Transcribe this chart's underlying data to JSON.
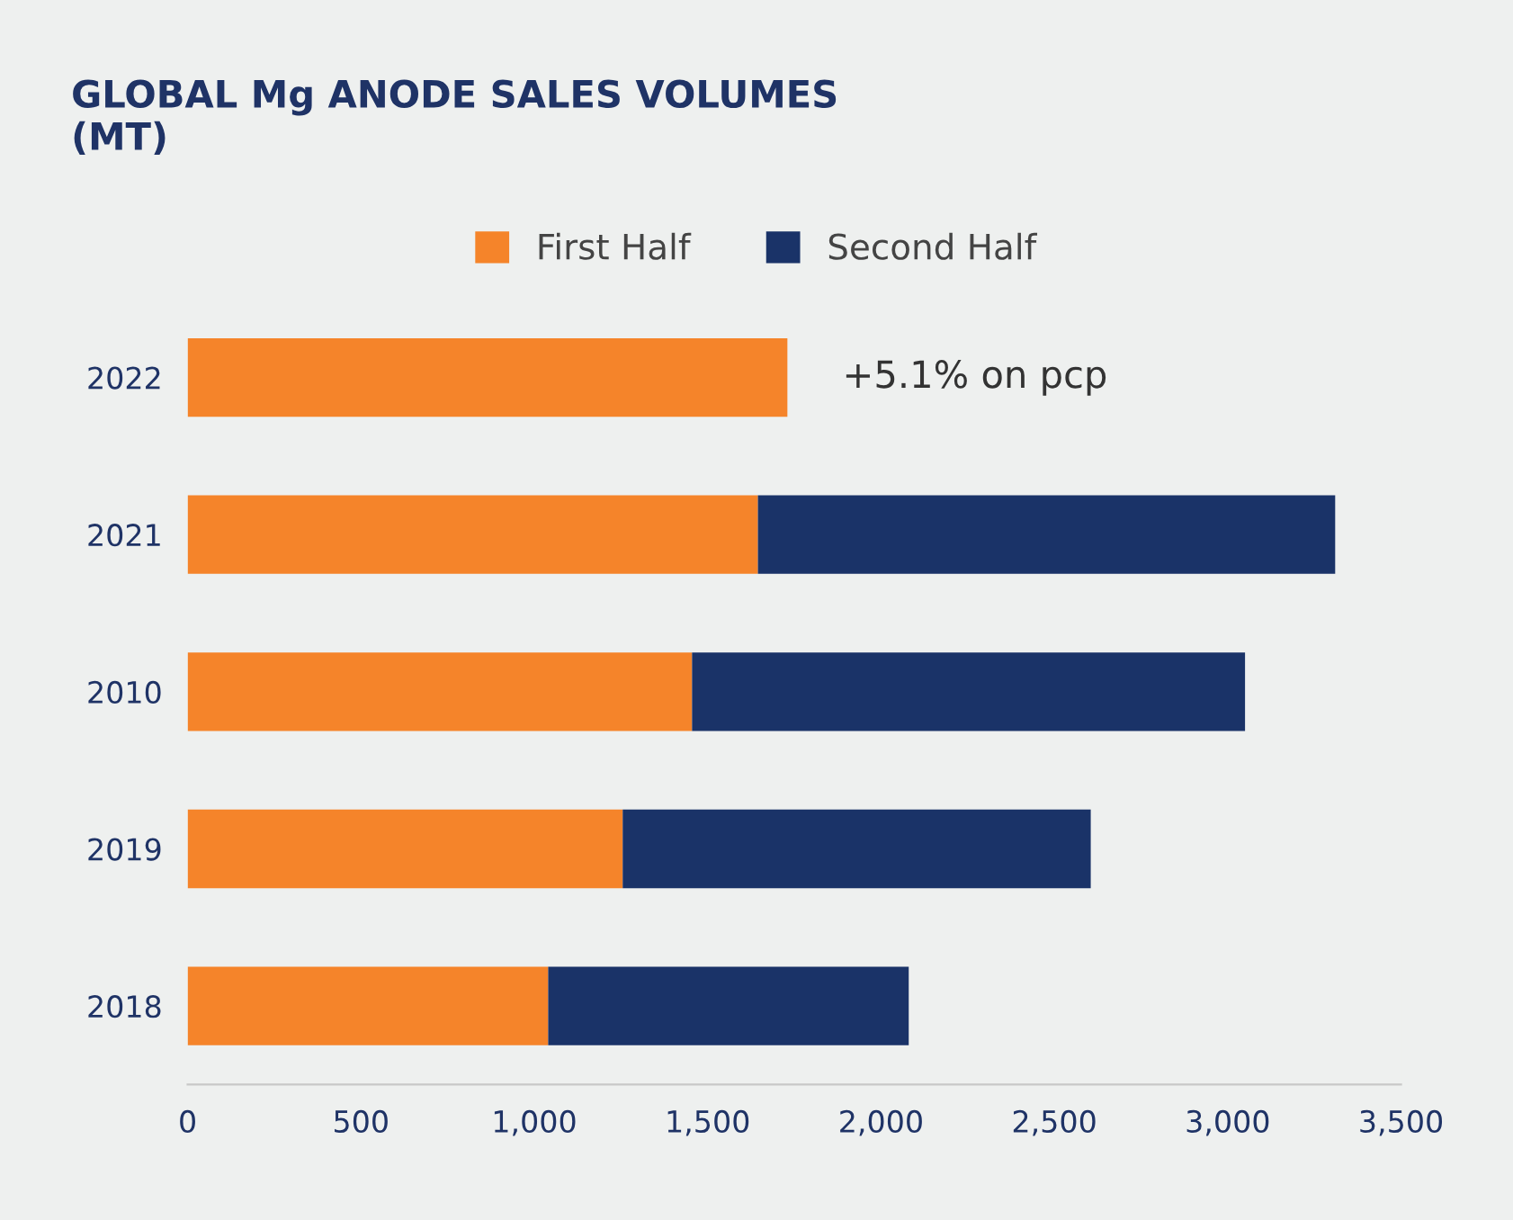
{
  "chart_data": {
    "type": "bar",
    "orientation": "horizontal",
    "stacked": true,
    "title": "GLOBAL Mg ANODE SALES VOLUMES\n(MT)",
    "categories": [
      "2022",
      "2021",
      "2010",
      "2019",
      "2018"
    ],
    "series": [
      {
        "name": "First Half",
        "color": "#f5842a",
        "values": [
          1730,
          1645,
          1455,
          1255,
          1040
        ]
      },
      {
        "name": "Second Half",
        "color": "#1a3368",
        "values": [
          null,
          1665,
          1595,
          1350,
          1040
        ]
      }
    ],
    "xlim": [
      0,
      3500
    ],
    "xticks": [
      0,
      500,
      {
        "value": 1000,
        "label": "1,000"
      },
      {
        "value": 1500,
        "label": "1,500"
      },
      {
        "value": 2000,
        "label": "2,000"
      },
      {
        "value": 2500,
        "label": "2,500"
      },
      {
        "value": 3000,
        "label": "3,000"
      },
      {
        "value": 3500,
        "label": "3,500"
      }
    ],
    "annotations": [
      {
        "text": "+5.1% on pcp",
        "x": 1730,
        "y": "2022"
      }
    ],
    "legend": "top",
    "grid": false
  }
}
